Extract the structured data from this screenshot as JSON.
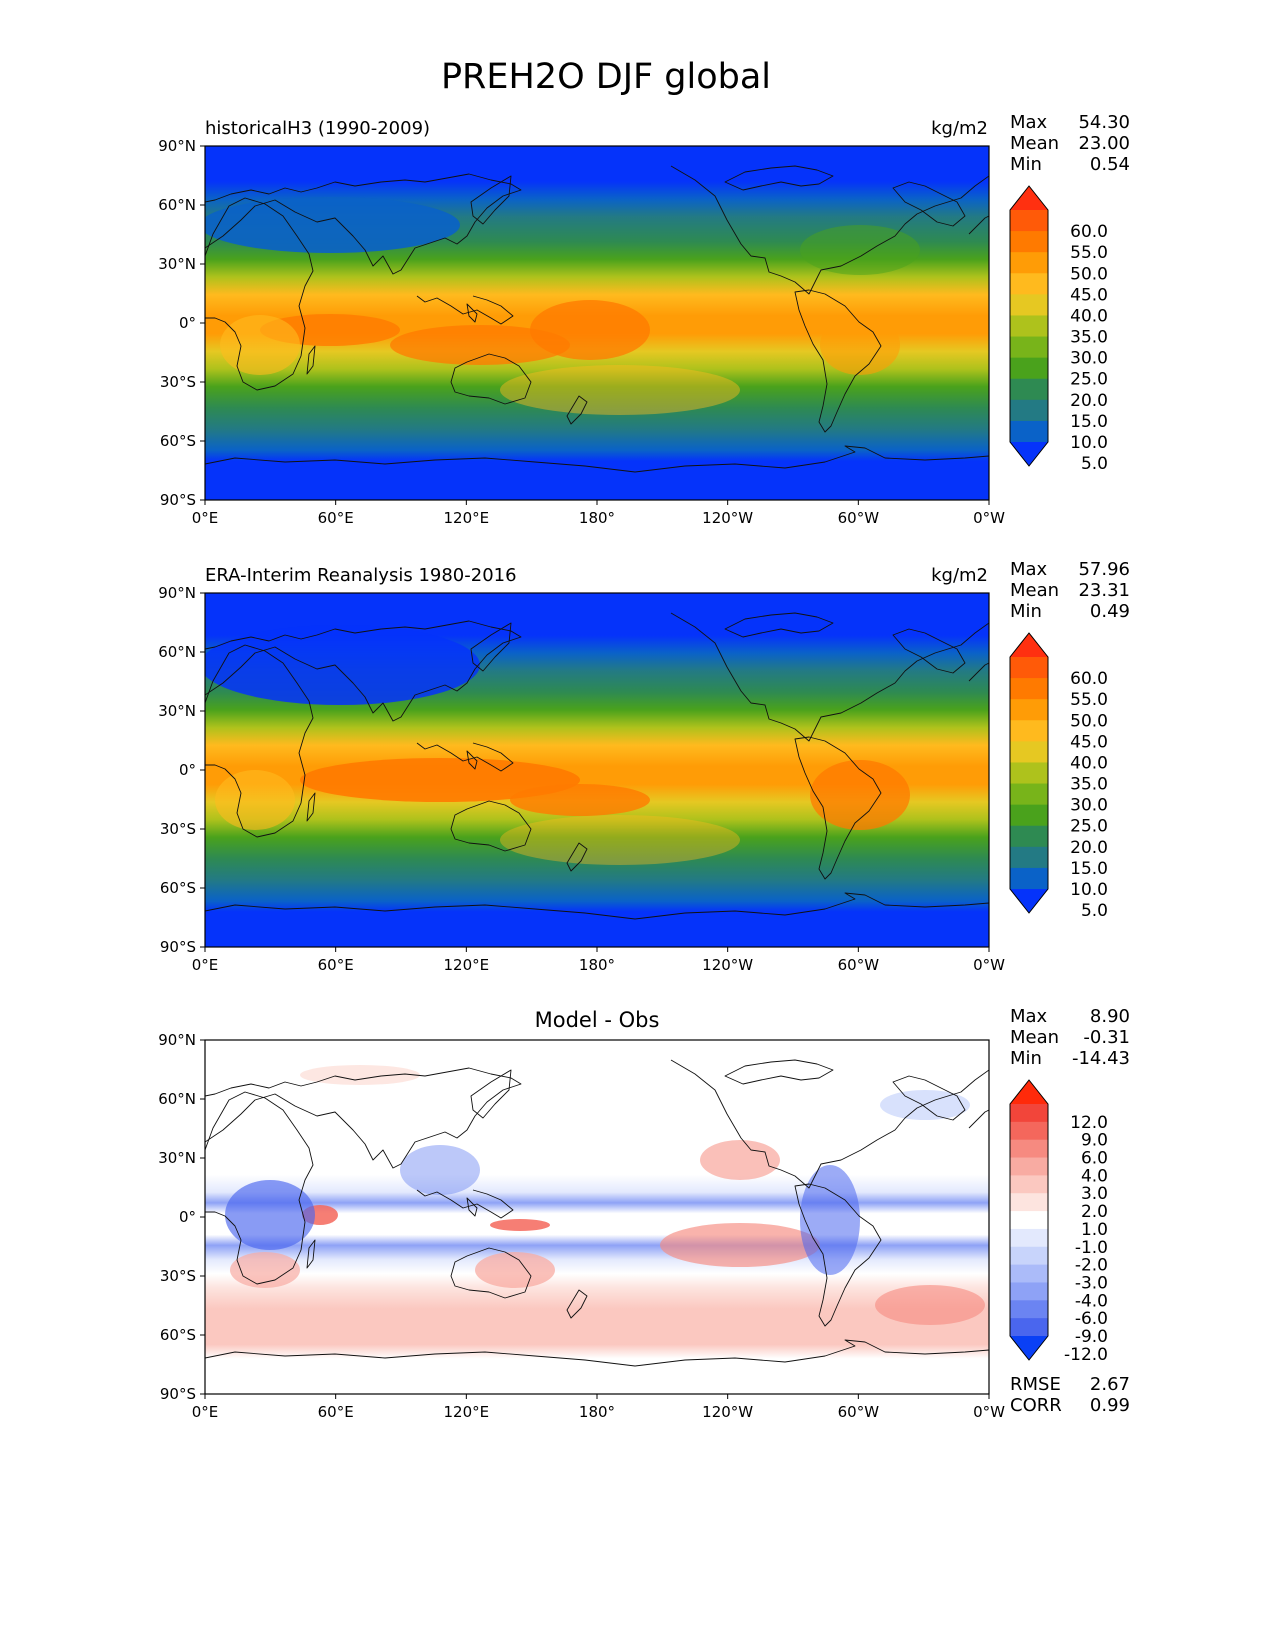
{
  "figure": {
    "title": "PREH2O DJF global",
    "x_ticks": [
      "0°E",
      "60°E",
      "120°E",
      "180°",
      "120°W",
      "60°W",
      "0°W"
    ],
    "y_ticks": [
      "90°N",
      "60°N",
      "30°N",
      "0°",
      "30°S",
      "60°S",
      "90°S"
    ]
  },
  "stats_labels": {
    "max": "Max",
    "mean": "Mean",
    "min": "Min",
    "rmse": "RMSE",
    "corr": "CORR"
  },
  "panels": [
    {
      "id": "model",
      "left_title": "historicalH3 (1990-2009)",
      "right_title": "kg/m2",
      "center_title": "",
      "stats": {
        "max": "54.30",
        "mean": "23.00",
        "min": "0.54"
      }
    },
    {
      "id": "obs",
      "left_title": "ERA-Interim Reanalysis 1980-2016",
      "right_title": "kg/m2",
      "center_title": "",
      "stats": {
        "max": "57.96",
        "mean": "23.31",
        "min": "0.49"
      }
    },
    {
      "id": "diff",
      "left_title": "",
      "right_title": "",
      "center_title": "Model - Obs",
      "stats": {
        "max": "8.90",
        "mean": "-0.31",
        "min": "-14.43"
      },
      "extra_stats": {
        "rmse": "2.67",
        "corr": "0.99"
      }
    }
  ],
  "colorbars": {
    "abs": {
      "labels": [
        "60.0",
        "55.0",
        "50.0",
        "45.0",
        "40.0",
        "35.0",
        "30.0",
        "25.0",
        "20.0",
        "15.0",
        "10.0",
        "5.0"
      ],
      "colors": [
        "#ff3010",
        "#ff5a08",
        "#ff7a00",
        "#ff9c06",
        "#ffba1e",
        "#e6c822",
        "#aec21c",
        "#78b41a",
        "#4aa21c",
        "#2e8a52",
        "#237a84",
        "#0a62c8",
        "#0533fa"
      ]
    },
    "diff": {
      "labels": [
        "12.0",
        "9.0",
        "6.0",
        "4.0",
        "3.0",
        "2.0",
        "1.0",
        "-1.0",
        "-2.0",
        "-3.0",
        "-4.0",
        "-6.0",
        "-9.0",
        "-12.0"
      ],
      "colors": [
        "#ff2a0a",
        "#f2453a",
        "#f4675c",
        "#f68a80",
        "#f8aba2",
        "#fbc8c0",
        "#fde4df",
        "#ffffff",
        "#e3e9fd",
        "#c8d4fb",
        "#abbbf9",
        "#8ea2f6",
        "#6b84f2",
        "#4a66ee",
        "#0a40f5"
      ]
    }
  }
}
